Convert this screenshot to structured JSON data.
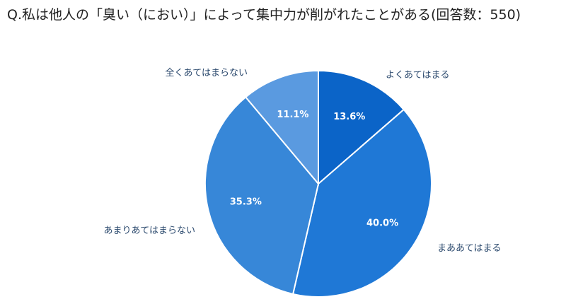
{
  "chart_data": {
    "type": "pie",
    "title": "Q.私は他人の「臭い（におい）」によって集中力が削がれたことがある(回答数：550)",
    "categories": [
      "よくあてはまる",
      "まああてはまる",
      "あまりあてはまらない",
      "全くあてはまらない"
    ],
    "values": [
      13.6,
      40.0,
      35.3,
      11.1
    ],
    "value_labels": [
      "13.6%",
      "40.0%",
      "35.3%",
      "11.1%"
    ],
    "colors": [
      "#0b64c8",
      "#1f78d6",
      "#3787d8",
      "#5a9ae0"
    ],
    "legend": "none"
  }
}
